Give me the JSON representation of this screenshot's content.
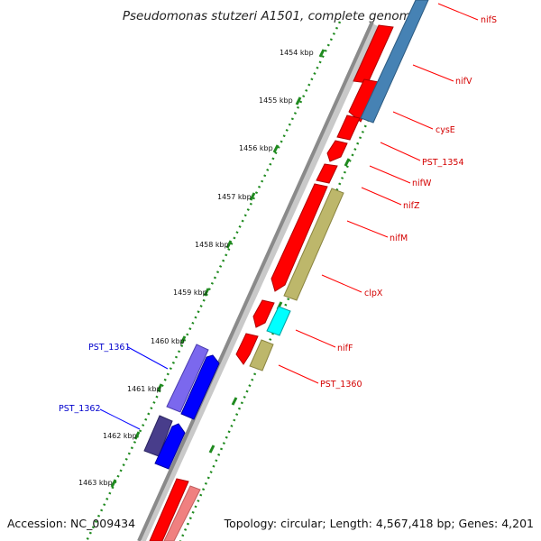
{
  "title": "Pseudomonas stutzeri A1501, complete genome",
  "footer": {
    "accession": "Accession: NC_009434",
    "topology": "Topology: circular; Length: 4,567,418 bp; Genes: 4,201"
  },
  "colors": {
    "backbone": "#8a8a8a",
    "tick_dots": "#1f8a1f",
    "forward_gene": "#ff0000",
    "forward_gene_light": "#f08080",
    "label_red": "#d40000",
    "label_blue": "#0000cc",
    "gene_blue": "#0000ff",
    "gene_purple": "#7b68ee",
    "gene_darkpurple": "#483d8b",
    "gene_steelblue": "#4682b4",
    "gene_khaki": "#bdb76b",
    "gene_cyan": "#00ffff"
  },
  "scale_labels": [
    "1454 kbp",
    "1455 kbp",
    "1456 kbp",
    "1457 kbp",
    "1458 kbp",
    "1459 kbp",
    "1460 kbp",
    "1461 kbp",
    "1462 kbp",
    "1463 kbp"
  ],
  "gene_labels_right": [
    "nifS",
    "nifV",
    "cysE",
    "PST_1354",
    "nifW",
    "nifZ",
    "nifM",
    "clpX",
    "nifF",
    "PST_1360"
  ],
  "gene_labels_left": [
    "PST_1361",
    "PST_1362"
  ]
}
